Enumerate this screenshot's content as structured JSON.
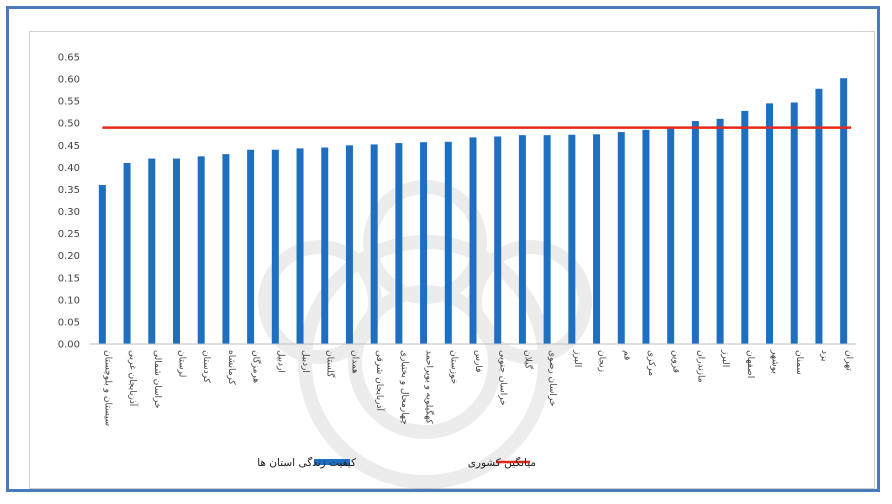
{
  "chart_data": {
    "type": "bar",
    "title": "",
    "xlabel": "",
    "ylabel": "",
    "ylim": [
      0,
      0.65
    ],
    "ytick_step": 0.05,
    "grid": false,
    "legend_position": "bottom",
    "categories": [
      "سیستان و بلوچستان",
      "آذربایجان غربی",
      "خراسان شمالی",
      "لرستان",
      "کردستان",
      "کرمانشاه",
      "هرمزگان",
      "اردبیل",
      "اردبیل",
      "گلستان",
      "همدان",
      "آذربایجان شرقی",
      "چهارمحال و بختیاری",
      "کهگیلویه و بویراحمد",
      "خوزستان",
      "فارس",
      "خراسان جنوبی",
      "گیلان",
      "خراسان رضوی",
      "البرز",
      "زنجان",
      "قم",
      "مرکزی",
      "قزوین",
      "مازندران",
      "البرز",
      "اصفهان",
      "بوشهر",
      "سمنان",
      "یزد",
      "تهران"
    ],
    "series": [
      {
        "name": "کیفیت زندگی استان ها",
        "color": "#1f6fc0",
        "values": [
          0.36,
          0.41,
          0.42,
          0.42,
          0.425,
          0.43,
          0.44,
          0.44,
          0.443,
          0.445,
          0.45,
          0.452,
          0.455,
          0.457,
          0.458,
          0.468,
          0.47,
          0.473,
          0.473,
          0.474,
          0.475,
          0.48,
          0.485,
          0.488,
          0.505,
          0.51,
          0.528,
          0.545,
          0.547,
          0.578,
          0.602
        ]
      }
    ],
    "reference_line": {
      "name": "میانگین کشوری",
      "value": 0.49,
      "color": "#e8291c"
    }
  }
}
